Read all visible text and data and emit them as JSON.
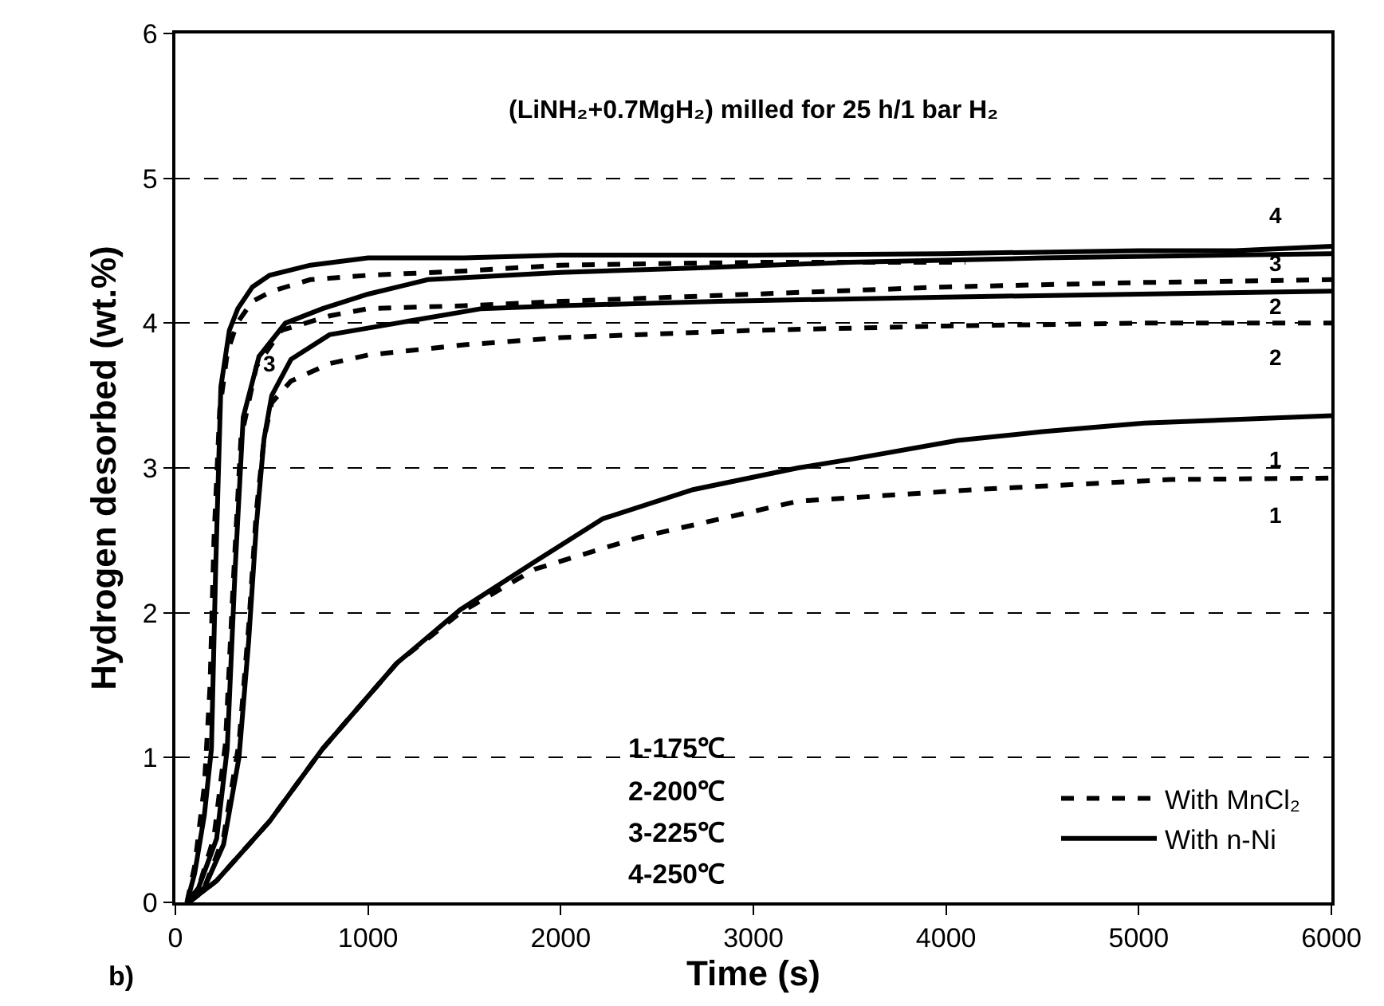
{
  "chart_data": {
    "type": "line",
    "title": "(LiNH₂+0.7MgH₂) milled for 25 h/1 bar H₂",
    "xlabel": "Time (s)",
    "ylabel": "Hydrogen desorbed (wt.%)",
    "xlim": [
      0,
      6000
    ],
    "xticks": [
      0,
      1000,
      2000,
      3000,
      4000,
      5000,
      6000
    ],
    "ylim": [
      0,
      6
    ],
    "yticks": [
      0,
      1,
      2,
      3,
      4,
      5,
      6
    ],
    "grid": "y",
    "legend": "bottom right",
    "marker": "none",
    "series": [
      {
        "name": "With MnCl₂",
        "color": "#000000",
        "line_style": "dashed",
        "x": [
          60,
          100,
          150,
          180,
          200,
          230,
          270,
          320,
          400,
          500,
          700,
          1000,
          1500,
          2000,
          3000,
          4100
        ],
        "values": [
          0,
          0.25,
          0.8,
          1.5,
          2.5,
          3.4,
          3.8,
          4.0,
          4.15,
          4.22,
          4.3,
          4.33,
          4.36,
          4.4,
          4.42,
          4.42
        ]
      },
      {
        "color": "#000000",
        "line_style": "dashed",
        "x": [
          60,
          120,
          200,
          260,
          300,
          340,
          420,
          550,
          800,
          1000,
          1500,
          2000,
          3000,
          4000,
          5000,
          6000
        ],
        "values": [
          0,
          0.1,
          0.45,
          1.1,
          2.2,
          3.2,
          3.7,
          3.95,
          4.05,
          4.1,
          4.12,
          4.15,
          4.2,
          4.25,
          4.28,
          4.3
        ]
      },
      {
        "color": "#000000",
        "line_style": "dashed",
        "x": [
          60,
          150,
          250,
          330,
          380,
          420,
          460,
          500,
          600,
          800,
          1000,
          1500,
          2000,
          3000,
          4000,
          5000,
          6000
        ],
        "values": [
          0,
          0.1,
          0.45,
          1.1,
          1.9,
          2.7,
          3.2,
          3.45,
          3.6,
          3.72,
          3.78,
          3.85,
          3.9,
          3.95,
          3.98,
          4.0,
          4.0
        ]
      },
      {
        "color": "#000000",
        "line_style": "dashed",
        "x": [
          70,
          214,
          489,
          764,
          1148,
          1478,
          1863,
          2405,
          3231,
          4146,
          5166,
          6000
        ],
        "values": [
          0,
          0.15,
          0.56,
          1.06,
          1.65,
          2.0,
          2.3,
          2.52,
          2.77,
          2.85,
          2.92,
          2.93
        ]
      },
      {
        "name": "With n-Ni",
        "color": "#000000",
        "line_style": "solid",
        "x": [
          60,
          100,
          150,
          187,
          209,
          236,
          280,
          324,
          400,
          489,
          700,
          1000,
          1500,
          2000,
          3000,
          4000,
          5000,
          5500,
          6000
        ],
        "values": [
          0,
          0.2,
          0.6,
          1.06,
          2.3,
          3.56,
          3.95,
          4.1,
          4.25,
          4.33,
          4.4,
          4.45,
          4.45,
          4.47,
          4.47,
          4.48,
          4.5,
          4.5,
          4.53
        ]
      },
      {
        "color": "#000000",
        "line_style": "solid",
        "x": [
          60,
          120,
          214,
          269,
          310,
          352,
          434,
          571,
          764,
          1000,
          1310,
          2000,
          2690,
          3500,
          4500,
          6000
        ],
        "values": [
          0,
          0.1,
          0.44,
          1.06,
          2.3,
          3.35,
          3.77,
          4.0,
          4.1,
          4.2,
          4.3,
          4.35,
          4.38,
          4.42,
          4.45,
          4.48
        ]
      },
      {
        "color": "#000000",
        "line_style": "solid",
        "x": [
          60,
          150,
          250,
          330,
          380,
          420,
          460,
          500,
          600,
          800,
          1150,
          1590,
          2000,
          2820,
          4000,
          5000,
          6000
        ],
        "values": [
          0,
          0.1,
          0.4,
          1.0,
          1.8,
          2.6,
          3.2,
          3.5,
          3.75,
          3.92,
          4.0,
          4.1,
          4.12,
          4.15,
          4.18,
          4.2,
          4.22
        ]
      },
      {
        "color": "#000000",
        "line_style": "solid",
        "x": [
          70,
          214,
          489,
          764,
          1148,
          1478,
          1863,
          2220,
          2687,
          3231,
          3507,
          4060,
          4500,
          5028,
          6000
        ],
        "values": [
          0,
          0.15,
          0.56,
          1.06,
          1.65,
          2.02,
          2.35,
          2.65,
          2.85,
          3.0,
          3.06,
          3.19,
          3.25,
          3.31,
          3.36
        ]
      }
    ],
    "annotations": [
      "4",
      "3",
      "2",
      "2",
      "1",
      "1",
      "3",
      "1-175℃",
      "2-200℃",
      "3-225℃",
      "4-250℃",
      "b)"
    ]
  }
}
